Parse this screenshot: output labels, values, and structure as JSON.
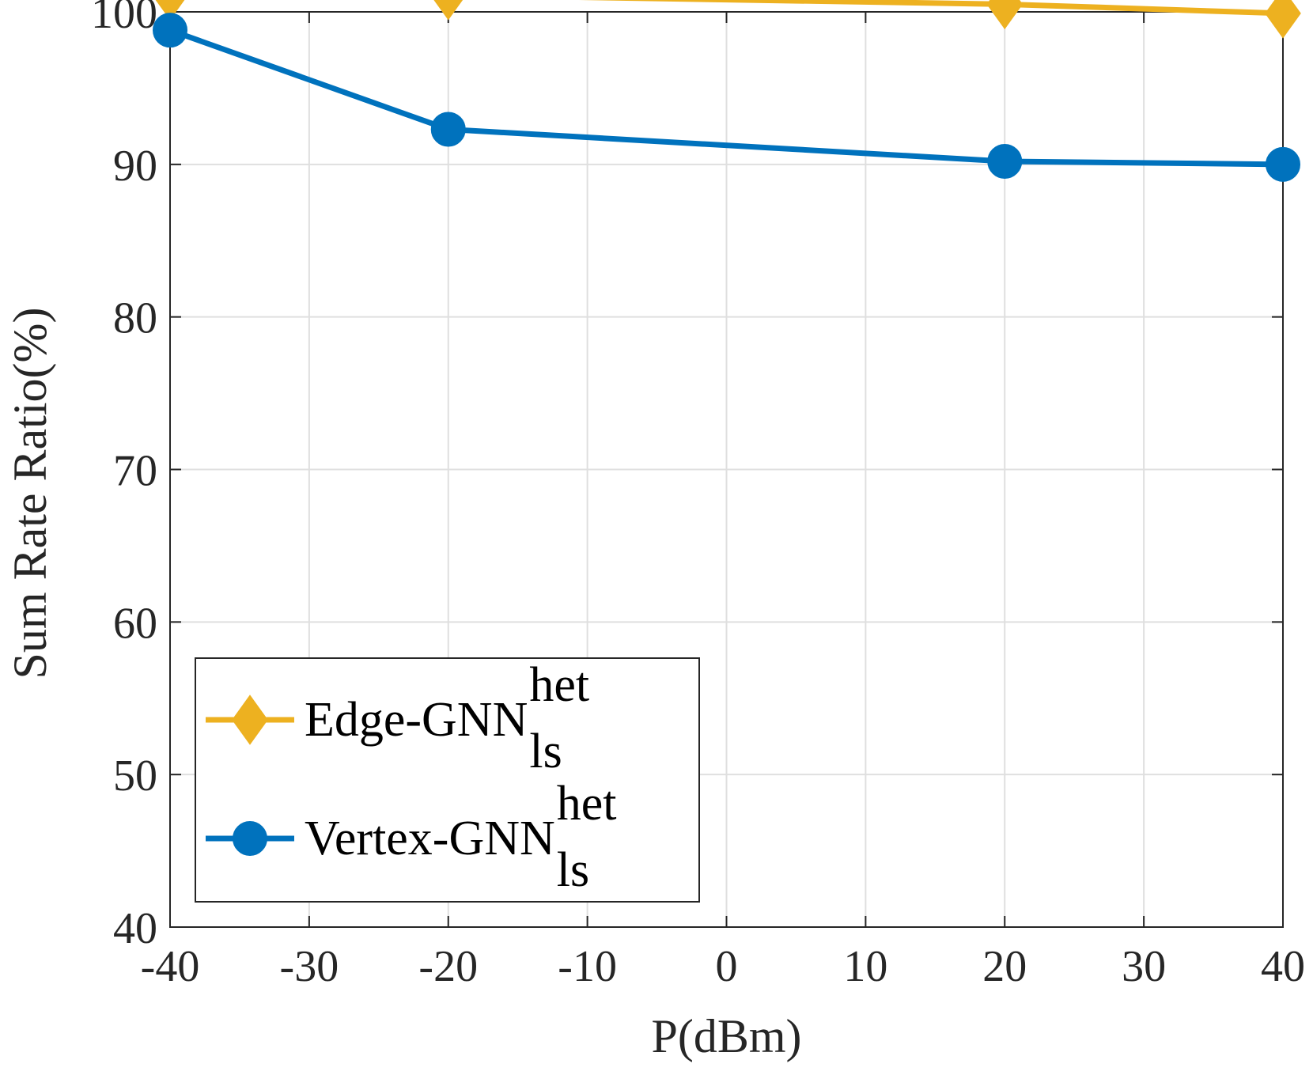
{
  "chart_data": {
    "type": "line",
    "title": "",
    "xlabel": "P(dBm)",
    "ylabel": "Sum Rate Ratio(%)",
    "xlim": [
      -40,
      40
    ],
    "ylim": [
      40,
      100
    ],
    "xticks": [
      -40,
      -30,
      -20,
      -10,
      0,
      10,
      20,
      30,
      40
    ],
    "yticks": [
      40,
      50,
      60,
      70,
      80,
      90,
      100
    ],
    "xtick_labels": [
      "-40",
      "-30",
      "-20",
      "-10",
      "0",
      "10",
      "20",
      "30",
      "40"
    ],
    "ytick_labels": [
      "40",
      "50",
      "60",
      "70",
      "80",
      "90",
      "100"
    ],
    "grid": true,
    "legend_position": "bottom-left",
    "series": [
      {
        "name": "Edge-GNN",
        "name_superscript": "het",
        "name_subscript": "ls",
        "color": "#EDB120",
        "marker": "diamond",
        "x": [
          -40,
          -20,
          20,
          40
        ],
        "y": [
          101.1,
          101.1,
          100.5,
          99.9
        ]
      },
      {
        "name": "Vertex-GNN",
        "name_superscript": "het",
        "name_subscript": "ls",
        "color": "#0072BD",
        "marker": "circle",
        "x": [
          -40,
          -20,
          20,
          40
        ],
        "y": [
          98.8,
          92.3,
          90.2,
          90.0
        ]
      }
    ]
  }
}
